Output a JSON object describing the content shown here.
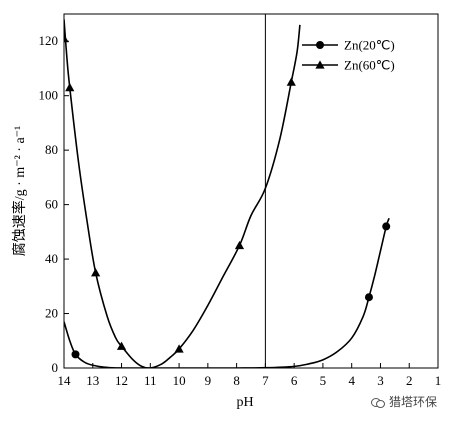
{
  "chart_data": {
    "type": "line",
    "xlabel": "pH",
    "ylabel": "腐蚀速率/g · m⁻² · a⁻¹",
    "xlim": [
      14,
      1
    ],
    "ylim": [
      0,
      130
    ],
    "x_ticks": [
      14,
      13,
      12,
      11,
      10,
      9,
      8,
      7,
      6,
      5,
      4,
      3,
      2,
      1
    ],
    "y_ticks": [
      0,
      20,
      40,
      60,
      80,
      100,
      120
    ],
    "x_axis_reversed": true,
    "reference_line_x": 7,
    "legend_position": "top-right",
    "series": [
      {
        "name": "Zn(20℃)",
        "marker": "circle",
        "points": [
          [
            13.6,
            5
          ],
          [
            3.4,
            26
          ],
          [
            2.8,
            52
          ]
        ],
        "curve": [
          [
            14,
            17
          ],
          [
            13.8,
            10
          ],
          [
            13.6,
            5
          ],
          [
            13.3,
            2.2
          ],
          [
            13.0,
            1
          ],
          [
            12.5,
            0.2
          ],
          [
            12,
            0
          ],
          [
            11,
            0
          ],
          [
            10,
            0
          ],
          [
            9,
            0
          ],
          [
            8,
            0
          ],
          [
            7,
            0.1
          ],
          [
            6,
            0.6
          ],
          [
            5.5,
            1.5
          ],
          [
            5,
            3
          ],
          [
            4.5,
            6
          ],
          [
            4,
            11
          ],
          [
            3.6,
            19
          ],
          [
            3.4,
            26
          ],
          [
            3.2,
            34
          ],
          [
            3.0,
            43
          ],
          [
            2.8,
            52
          ],
          [
            2.7,
            55
          ]
        ]
      },
      {
        "name": "Zn(60℃)",
        "marker": "triangle",
        "points": [
          [
            14,
            121
          ],
          [
            13.8,
            103
          ],
          [
            12.9,
            35
          ],
          [
            12,
            8
          ],
          [
            10,
            7
          ],
          [
            7.9,
            45
          ],
          [
            6.1,
            105
          ]
        ],
        "curve": [
          [
            14,
            128
          ],
          [
            13.9,
            114
          ],
          [
            13.8,
            103
          ],
          [
            13.5,
            76
          ],
          [
            13.2,
            54
          ],
          [
            12.9,
            35
          ],
          [
            12.5,
            19
          ],
          [
            12.2,
            11
          ],
          [
            12,
            8
          ],
          [
            11.6,
            3
          ],
          [
            11.3,
            0.6
          ],
          [
            11.0,
            0
          ],
          [
            10.6,
            1.5
          ],
          [
            10.3,
            4
          ],
          [
            10,
            7
          ],
          [
            9.5,
            14
          ],
          [
            9,
            23
          ],
          [
            8.5,
            33
          ],
          [
            7.9,
            45
          ],
          [
            7.5,
            56
          ],
          [
            7,
            66
          ],
          [
            6.5,
            84
          ],
          [
            6.1,
            105
          ],
          [
            5.9,
            116
          ],
          [
            5.8,
            126
          ]
        ]
      }
    ]
  },
  "watermark": {
    "text": "猎塔环保",
    "icon": "wechat-icon"
  }
}
